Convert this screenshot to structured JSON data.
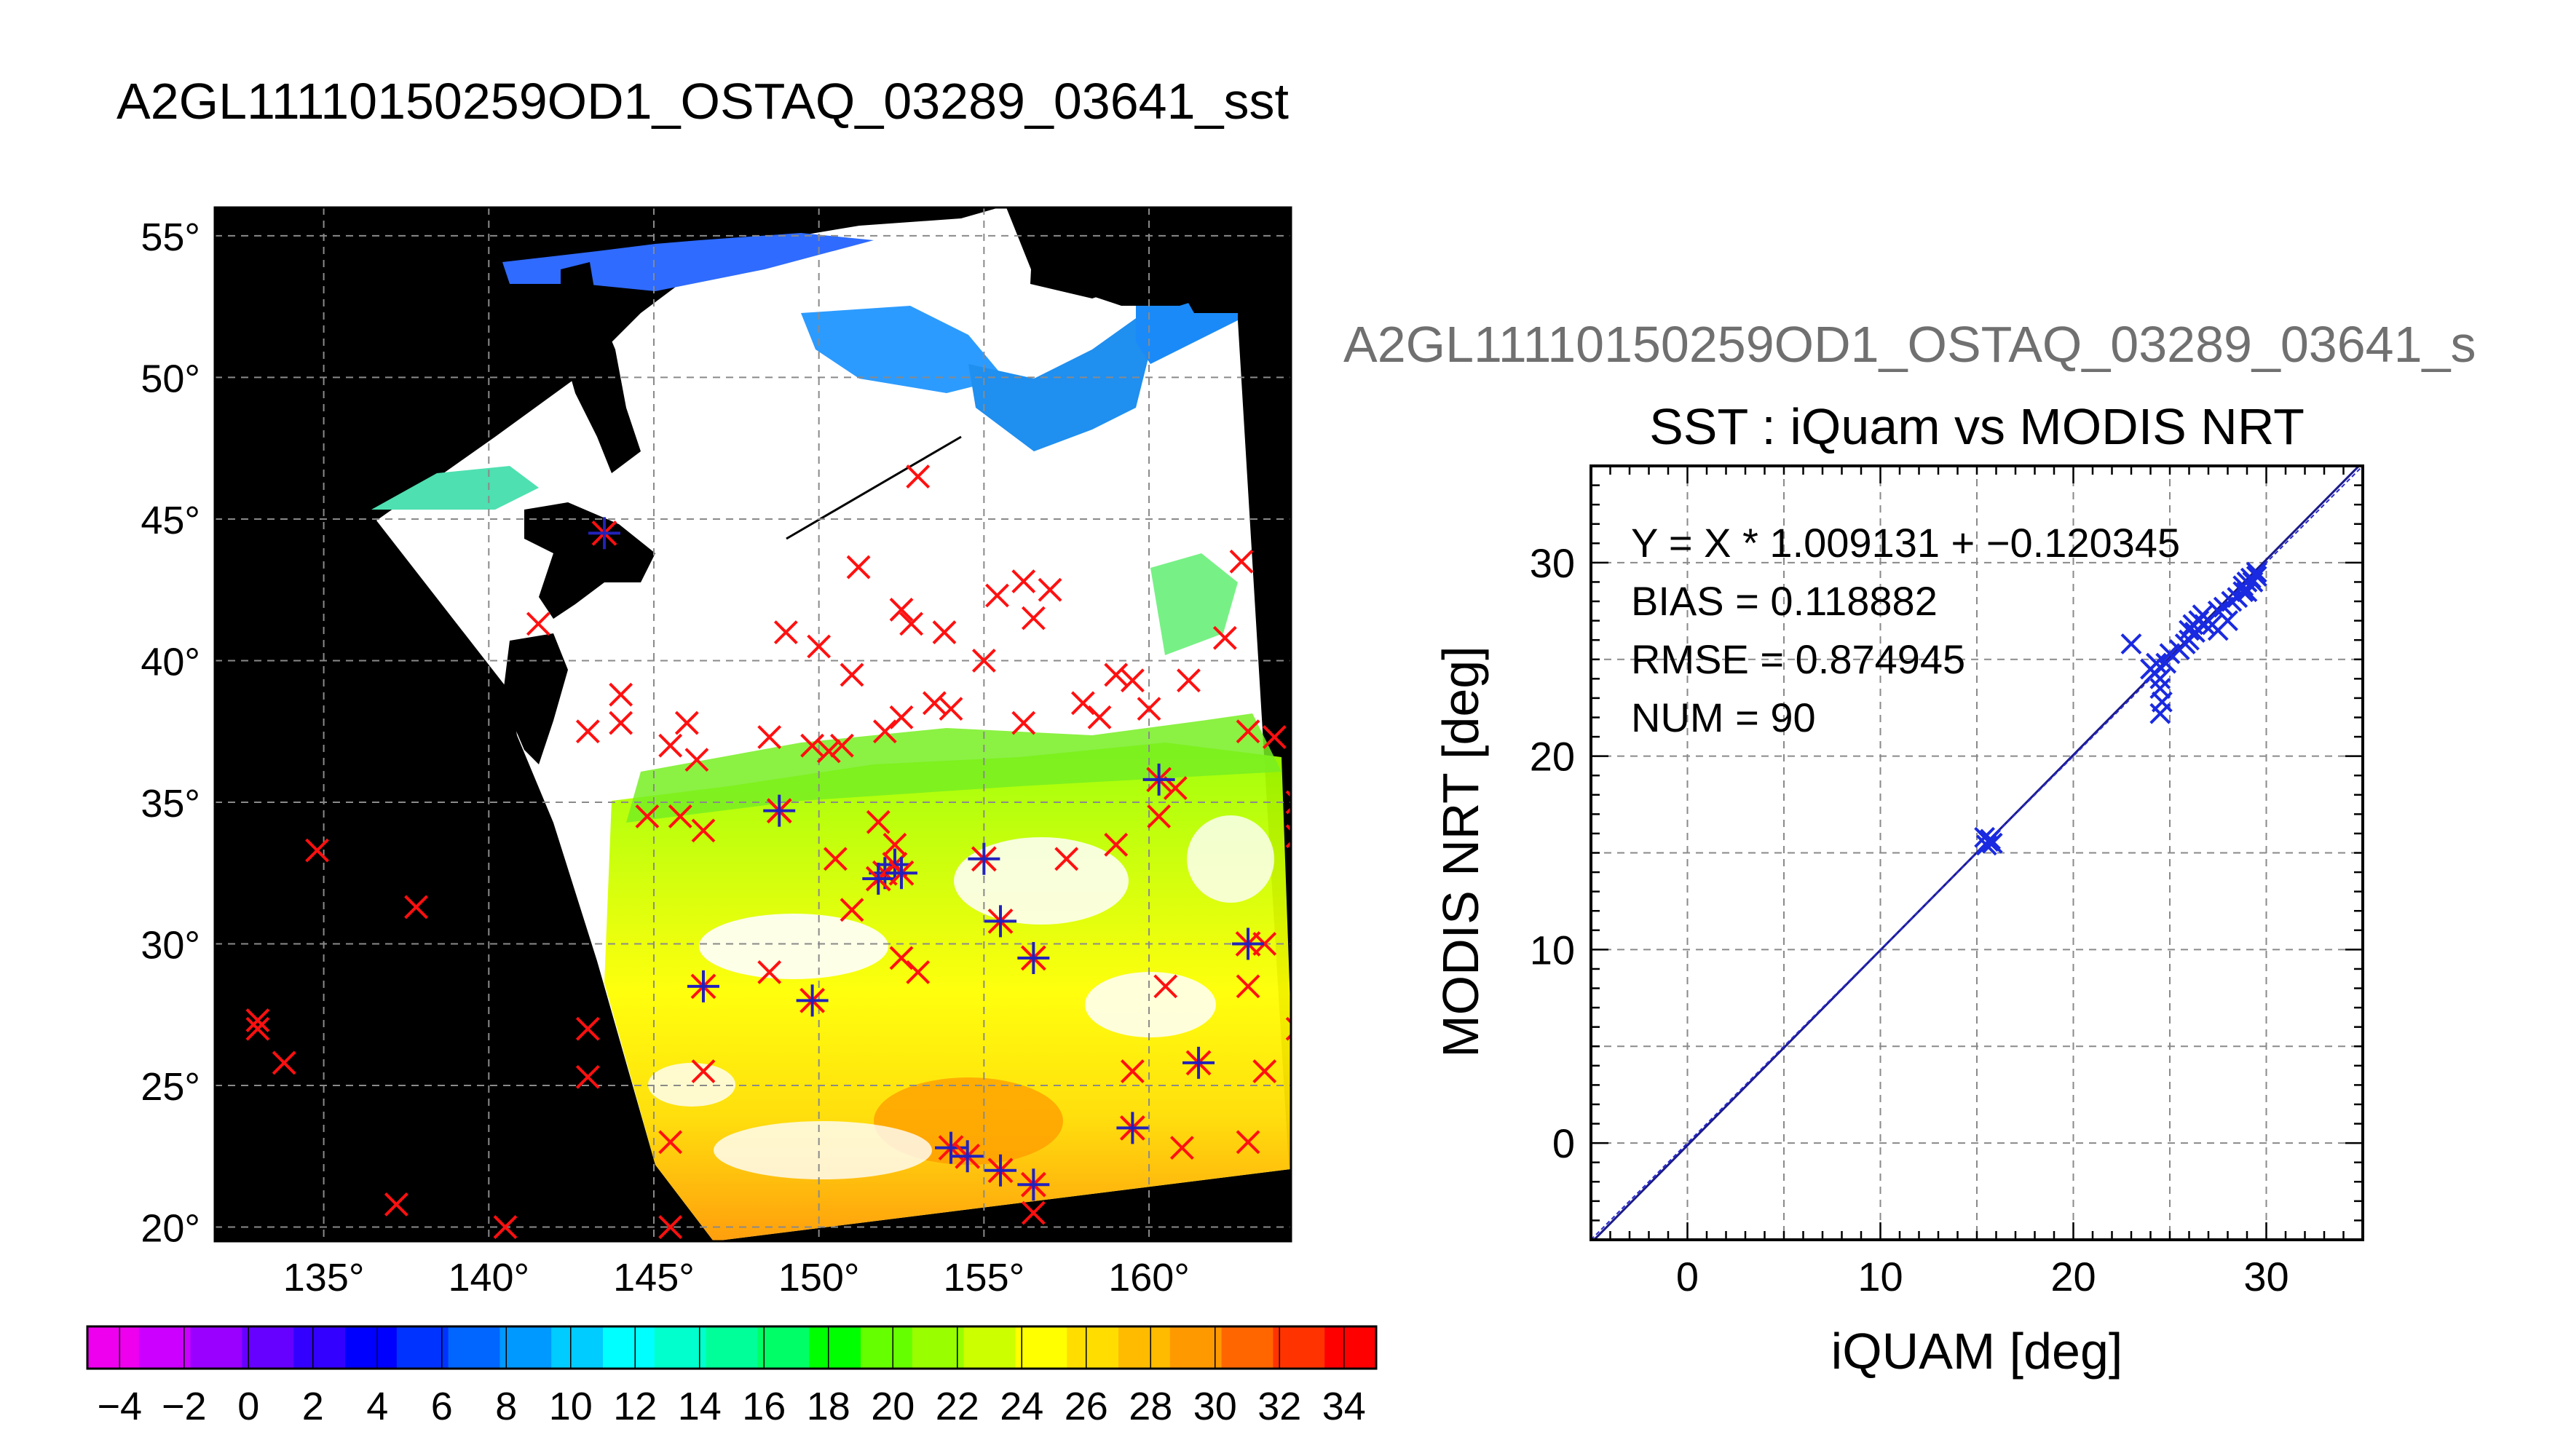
{
  "page_title": "A2GL11110150259OD1_OSTAQ_03289_03641_sst",
  "scatter_header": "A2GL11110150259OD1_OSTAQ_03289_03641_s",
  "chart_data": [
    {
      "type": "map",
      "lon_ticks": [
        "135°",
        "140°",
        "145°",
        "150°",
        "155°",
        "160°"
      ],
      "lat_ticks": [
        "55°",
        "50°",
        "45°",
        "40°",
        "35°",
        "30°",
        "25°",
        "20°"
      ],
      "lon_range": [
        131.7,
        164.3
      ],
      "lat_range": [
        19.5,
        56.0
      ],
      "grid": true,
      "colorbar": {
        "range": [
          -5,
          35
        ],
        "tick_labels": [
          "-4",
          "-2",
          "0",
          "2",
          "4",
          "6",
          "8",
          "10",
          "12",
          "14",
          "16",
          "18",
          "20",
          "22",
          "24",
          "26",
          "28",
          "30",
          "32",
          "34"
        ],
        "colors": [
          "#ee00ee",
          "#cc00ff",
          "#9900ff",
          "#6600ff",
          "#3300ff",
          "#0000ff",
          "#0033ff",
          "#0066ff",
          "#0099ff",
          "#00ccff",
          "#00ffff",
          "#00ffcc",
          "#00ff99",
          "#00ff66",
          "#00ff00",
          "#66ff00",
          "#99ff00",
          "#ccff00",
          "#ffff00",
          "#ffdd00",
          "#ffbb00",
          "#ff9900",
          "#ff6600",
          "#ff3300",
          "#ff0000"
        ]
      },
      "red_markers": [
        [
          153.0,
          46.5
        ],
        [
          141.5,
          41.3
        ],
        [
          144.0,
          38.8
        ],
        [
          143.0,
          37.5
        ],
        [
          144.0,
          37.8
        ],
        [
          145.5,
          37.0
        ],
        [
          149.0,
          41.0
        ],
        [
          150.0,
          40.5
        ],
        [
          151.2,
          43.3
        ],
        [
          151.0,
          39.5
        ],
        [
          152.5,
          41.8
        ],
        [
          152.8,
          41.3
        ],
        [
          153.8,
          41.0
        ],
        [
          155.0,
          40.0
        ],
        [
          155.4,
          42.3
        ],
        [
          156.2,
          42.8
        ],
        [
          157.0,
          42.5
        ],
        [
          156.5,
          41.5
        ],
        [
          158.0,
          38.5
        ],
        [
          159.5,
          39.3
        ],
        [
          159.0,
          39.5
        ],
        [
          158.5,
          38.0
        ],
        [
          160.0,
          38.3
        ],
        [
          161.2,
          39.3
        ],
        [
          162.8,
          43.5
        ],
        [
          162.3,
          40.8
        ],
        [
          163.0,
          37.5
        ],
        [
          163.8,
          37.3
        ],
        [
          164.8,
          38.0
        ],
        [
          164.5,
          35.0
        ],
        [
          164.5,
          33.8
        ],
        [
          152.0,
          37.5
        ],
        [
          153.5,
          38.5
        ],
        [
          154.0,
          38.3
        ],
        [
          152.5,
          38.0
        ],
        [
          156.2,
          37.8
        ],
        [
          148.5,
          37.3
        ],
        [
          149.8,
          37.0
        ],
        [
          150.3,
          36.8
        ],
        [
          150.7,
          37.0
        ],
        [
          146.0,
          37.8
        ],
        [
          146.3,
          36.5
        ],
        [
          145.8,
          34.5
        ],
        [
          146.5,
          34.0
        ],
        [
          144.8,
          34.5
        ],
        [
          148.8,
          34.7
        ],
        [
          150.5,
          33.0
        ],
        [
          151.8,
          34.3
        ],
        [
          152.3,
          33.5
        ],
        [
          157.5,
          33.0
        ],
        [
          159.0,
          33.5
        ],
        [
          160.3,
          34.5
        ],
        [
          160.8,
          35.5
        ],
        [
          151.0,
          31.2
        ],
        [
          148.5,
          29.0
        ],
        [
          152.5,
          29.5
        ],
        [
          153.0,
          29.0
        ],
        [
          160.5,
          28.5
        ],
        [
          163.0,
          28.5
        ],
        [
          163.5,
          30.0
        ],
        [
          164.5,
          27.0
        ],
        [
          163.5,
          25.5
        ],
        [
          159.5,
          25.5
        ],
        [
          163.0,
          23.0
        ],
        [
          161.0,
          22.8
        ],
        [
          159.5,
          23.5
        ],
        [
          146.5,
          25.5
        ],
        [
          145.5,
          23.0
        ],
        [
          155.5,
          22.0
        ],
        [
          156.5,
          21.5
        ],
        [
          156.5,
          20.5
        ],
        [
          145.5,
          20.0
        ],
        [
          140.5,
          20.0
        ],
        [
          137.2,
          20.8
        ],
        [
          133.0,
          27.3
        ],
        [
          133.0,
          27.0
        ],
        [
          133.8,
          25.8
        ],
        [
          134.8,
          33.3
        ],
        [
          137.8,
          31.3
        ],
        [
          143.0,
          27.0
        ],
        [
          143.0,
          25.3
        ]
      ],
      "blue_markers": [
        [
          143.5,
          44.5
        ],
        [
          148.8,
          34.7
        ],
        [
          152.0,
          32.5
        ],
        [
          152.3,
          32.8
        ],
        [
          151.8,
          32.3
        ],
        [
          152.5,
          32.5
        ],
        [
          155.0,
          33.0
        ],
        [
          155.5,
          30.8
        ],
        [
          156.5,
          29.5
        ],
        [
          160.3,
          35.8
        ],
        [
          163.0,
          30.0
        ],
        [
          161.5,
          25.8
        ],
        [
          159.5,
          23.5
        ],
        [
          156.5,
          21.5
        ],
        [
          155.5,
          22.0
        ],
        [
          154.0,
          22.8
        ],
        [
          154.5,
          22.5
        ],
        [
          149.8,
          28.0
        ],
        [
          146.5,
          28.5
        ]
      ]
    },
    {
      "type": "scatter",
      "title": "SST : iQuam vs MODIS NRT",
      "xlabel": "iQUAM [deg]",
      "ylabel": "MODIS NRT [deg]",
      "xlim": [
        -5,
        35
      ],
      "ylim": [
        -5,
        35
      ],
      "x_ticks": [
        0,
        10,
        20,
        30
      ],
      "y_ticks": [
        0,
        10,
        20,
        30
      ],
      "grid": true,
      "stats": [
        "Y = X * 1.009131 + −0.120345",
        "BIAS = 0.118882",
        "RMSE = 0.874945",
        "NUM = 90"
      ],
      "fit": {
        "slope": 1.009131,
        "intercept": -0.120345
      },
      "points": [
        [
          15.5,
          15.4
        ],
        [
          15.7,
          15.7
        ],
        [
          15.6,
          15.6
        ],
        [
          15.4,
          15.8
        ],
        [
          15.8,
          15.5
        ],
        [
          23.0,
          25.8
        ],
        [
          24.0,
          24.5
        ],
        [
          24.3,
          24.8
        ],
        [
          24.2,
          24.3
        ],
        [
          24.5,
          24.0
        ],
        [
          24.5,
          23.5
        ],
        [
          24.6,
          22.8
        ],
        [
          24.5,
          22.2
        ],
        [
          25.5,
          25.5
        ],
        [
          25.8,
          25.8
        ],
        [
          26.0,
          26.5
        ],
        [
          26.2,
          26.8
        ],
        [
          26.5,
          27.0
        ],
        [
          26.3,
          26.4
        ],
        [
          26.7,
          27.3
        ],
        [
          27.0,
          27.0
        ],
        [
          27.2,
          26.8
        ],
        [
          27.5,
          27.5
        ],
        [
          27.5,
          26.5
        ],
        [
          28.0,
          27.0
        ],
        [
          28.5,
          28.2
        ],
        [
          28.8,
          28.5
        ],
        [
          29.0,
          29.0
        ],
        [
          29.2,
          29.2
        ],
        [
          29.5,
          29.3
        ],
        [
          28.8,
          28.8
        ],
        [
          29.0,
          28.5
        ],
        [
          29.3,
          29.0
        ],
        [
          29.5,
          29.5
        ],
        [
          26.0,
          26.0
        ],
        [
          26.8,
          26.8
        ],
        [
          27.8,
          27.7
        ],
        [
          28.2,
          28.0
        ],
        [
          25.0,
          25.3
        ],
        [
          24.8,
          24.8
        ]
      ]
    }
  ]
}
